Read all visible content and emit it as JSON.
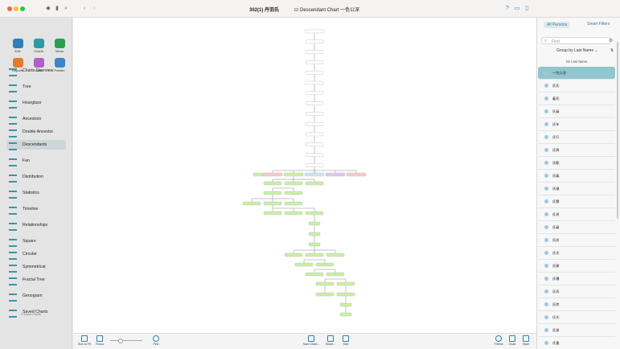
{
  "window": {
    "doc_title": "302(1) 丹羽氏",
    "chart_title": "Descendant Chart 一色公深"
  },
  "toolbar": {
    "buttons": [
      {
        "label": "Edit",
        "color": "#2f7fb8"
      },
      {
        "label": "Charts",
        "color": "#2a9aa6"
      },
      {
        "label": "Views",
        "color": "#2aa04f"
      },
      {
        "label": "Reports",
        "color": "#e07d2b"
      },
      {
        "label": "Lists",
        "color": "#b25ec9"
      },
      {
        "label": "Publish",
        "color": "#3b86c9"
      }
    ]
  },
  "sidebar": {
    "items": [
      {
        "label": "Charts Overview",
        "icon": "charts-overview-icon"
      },
      {
        "label": "Tree",
        "icon": "tree-icon"
      },
      {
        "label": "Hourglass",
        "icon": "hourglass-icon"
      },
      {
        "label": "Ancestors",
        "icon": "ancestors-icon"
      },
      {
        "label": "Double Ancestor",
        "icon": "double-ancestor-icon"
      },
      {
        "label": "Descendants",
        "icon": "descendants-icon",
        "active": true
      },
      {
        "label": "Fan",
        "icon": "fan-icon"
      },
      {
        "label": "Distribution",
        "icon": "distribution-icon"
      },
      {
        "label": "Statistics",
        "icon": "statistics-icon"
      },
      {
        "label": "Timeline",
        "icon": "timeline-icon"
      },
      {
        "label": "Relationships",
        "icon": "relationships-icon"
      },
      {
        "label": "Square",
        "icon": "square-icon"
      },
      {
        "label": "Circular",
        "icon": "circular-icon"
      },
      {
        "label": "Symmetrical",
        "icon": "symmetrical-icon"
      },
      {
        "label": "Fractal Tree",
        "icon": "fractal-tree-icon"
      },
      {
        "label": "Genogram",
        "icon": "genogram-icon"
      },
      {
        "label": "Saved Charts",
        "icon": "saved-charts-icon"
      }
    ],
    "saved_charts_sub": "0 Saved Charts"
  },
  "bottom_bar": {
    "size_to_fit": "Size to Fit",
    "focus": "Focus",
    "find": "Find",
    "save_chart": "Save Chart...",
    "share": "Share...",
    "edit": "Edit",
    "theme": "Theme",
    "chart": "Chart",
    "style": "Style"
  },
  "right_panel": {
    "tab_all": "All Persons",
    "tab_smart": "Smart Filters",
    "search_placeholder": "Find",
    "group_by": "Group by Last Name",
    "section": "No Last Name",
    "persons": [
      "一色公深",
      "武氏",
      "義氏",
      "氏員",
      "氏年",
      "氏行",
      "氏興",
      "氏範",
      "氏義",
      "氏継",
      "氏賢",
      "氏貞",
      "氏員",
      "氏尚",
      "氏次",
      "氏康",
      "氏種",
      "氏寿",
      "氏房",
      "氏光",
      "氏俊",
      "氏重"
    ]
  },
  "colors": {
    "accent": "#2b7fa5",
    "selected_row": "#90c7cd",
    "node_green": "#c9f0a6",
    "node_pink": "#f7c9c9",
    "node_purple": "#dcc8f2",
    "node_blue": "#c8e6f5"
  }
}
